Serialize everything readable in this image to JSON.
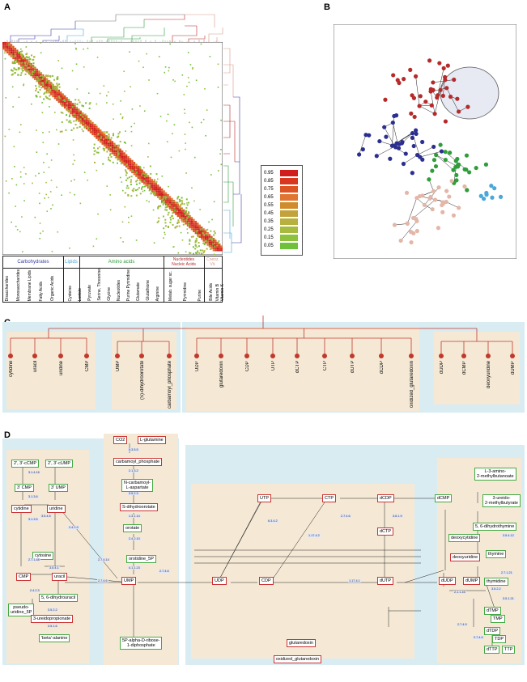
{
  "labels": {
    "a": "A",
    "b": "B",
    "c": "C",
    "d": "D"
  },
  "panelA": {
    "legend": [
      "0.95",
      "0.85",
      "0.75",
      "0.65",
      "0.55",
      "0.45",
      "0.35",
      "0.25",
      "0.15",
      "0.05"
    ],
    "legend_colors": [
      "#d21d1d",
      "#d8361f",
      "#dc5424",
      "#e07430",
      "#d08c2c",
      "#c4a23a",
      "#b7b03e",
      "#a6ba3e",
      "#8ec13c",
      "#70c13a"
    ],
    "groups": [
      {
        "name": "Carbohydrates",
        "color": "#3b3fa6"
      },
      {
        "name": "Lipids",
        "color": "#4aa8d8"
      },
      {
        "name": "Amino acids",
        "color": "#2f9d3a"
      },
      {
        "name": "Nucleotides\nNucleic Acids",
        "color": "#b52a2a"
      },
      {
        "name": "Coenz.\nVit.",
        "color": "#d69a88"
      }
    ],
    "sub": [
      "Disaccharides",
      "Monosaccharides",
      "Membrane Lipids",
      "Fatty Acids",
      "Organic Acids",
      "Cysteine",
      "Lactate",
      "Pyruvate",
      "Serine, Threonine",
      "Glycine",
      "Nucleotides",
      "Purine Pyrimidine",
      "Glutamate",
      "Glutathione",
      "Arginine",
      "Metab. sugar sc.",
      "Pyrimidine",
      "Purine",
      "Bile Acids",
      "Vitamin B",
      "Vitamin K"
    ]
  },
  "panelC": {
    "group1": [
      "cytidine",
      "uracil",
      "uridine",
      "CMP"
    ],
    "group2": [
      "UMP",
      "(S)-dihydroorotate",
      "carbamoyl_phosphate"
    ],
    "group3": [
      "UDP",
      "glutaredoxin",
      "CDP",
      "UTP",
      "dCTP",
      "CTP",
      "dUTP",
      "dCDP",
      "oxidized_glutaredoxin"
    ],
    "group4": [
      "dUDP",
      "dCMP",
      "deoxyuridine",
      "dUMP"
    ]
  },
  "panelD": {
    "nodes": {
      "n1": "2', 3'-cCMP",
      "n2": "2', 3'-cUMP",
      "n3": "3' CMP",
      "n4": "3' UMP",
      "n5": "cytidine",
      "n6": "uridine",
      "n7": "cytosine",
      "n8": "CMP",
      "n9": "uracil",
      "n10": "pseudo-\nuridine_5P",
      "n11": "5, 6-dihydrouracil",
      "n12": "3-ureidopropionate",
      "n13": "'beta'-alanine",
      "n14": "CO2",
      "n15": "L-glutamine",
      "n16": "carbamoyl_phosphate",
      "n17": "N-carbamoyl-\nL-aspartate",
      "n18": "S-dihydroorotate",
      "n19": "orotate",
      "n20": "orotidine_5P",
      "n21": "UMP",
      "n22": "5P-alpha-D-ribose-\n1-diphosphate",
      "n23": "UDP",
      "n24": "CDP",
      "n25": "UTP",
      "n26": "CTP",
      "n27": "dCDP",
      "n28": "dCTP",
      "n29": "dUTP",
      "n30": "dUDP",
      "n31": "glutaredoxin",
      "n32": "oxidized_glutaredoxin",
      "n33": "dCMP",
      "n34": "dUMP",
      "n35": "deoxycytidine",
      "n36": "deoxyuridine",
      "n37": "L-3-amino-\n2-methylbutanoate",
      "n38": "3-ureido-\n2-methylbutyrate",
      "n39": "5, 6-dihydrothymine",
      "n40": "thymine",
      "n41": "thymidine",
      "n42": "dTMP",
      "n43": "TMP",
      "n44": "dTDP",
      "n45": "TDP",
      "n46": "dTTP",
      "n47": "TTP"
    },
    "ec": [
      "3.1.4.16",
      "3.1.3.6",
      "3.1.3.5",
      "3.5.4.5",
      "2.7.1.48",
      "2.4.2.9",
      "3.5.4.1",
      "2.4.2.3",
      "3.5.2.2",
      "3.5.1.6",
      "6.3.5.5",
      "2.1.3.2",
      "3.5.2.3",
      "1.3.1.14",
      "2.4.2.10",
      "4.1.1.23",
      "2.7.4.14",
      "2.7.4.6",
      "2.7.4.6",
      "6.3.4.2",
      "1.17.4.2",
      "2.7.4.6",
      "3.6.1.9",
      "1.17.4.1",
      "2.1.1.45",
      "2.7.4.9",
      "2.7.4.6",
      "3.5.4.12",
      "2.7.1.21",
      "3.5.2.2",
      "3.5.1.21"
    ]
  }
}
